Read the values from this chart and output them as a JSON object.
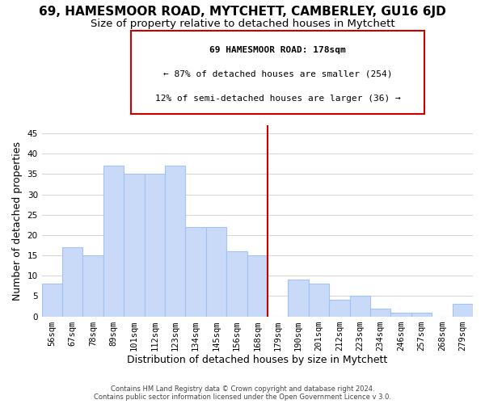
{
  "title1": "69, HAMESMOOR ROAD, MYTCHETT, CAMBERLEY, GU16 6JD",
  "title2": "Size of property relative to detached houses in Mytchett",
  "xlabel": "Distribution of detached houses by size in Mytchett",
  "ylabel": "Number of detached properties",
  "footer1": "Contains HM Land Registry data © Crown copyright and database right 2024.",
  "footer2": "Contains public sector information licensed under the Open Government Licence v 3.0.",
  "annotation_line1": "69 HAMESMOOR ROAD: 178sqm",
  "annotation_line2": "← 87% of detached houses are smaller (254)",
  "annotation_line3": "12% of semi-detached houses are larger (36) →",
  "bar_labels": [
    "56sqm",
    "67sqm",
    "78sqm",
    "89sqm",
    "101sqm",
    "112sqm",
    "123sqm",
    "134sqm",
    "145sqm",
    "156sqm",
    "168sqm",
    "179sqm",
    "190sqm",
    "201sqm",
    "212sqm",
    "223sqm",
    "234sqm",
    "246sqm",
    "257sqm",
    "268sqm",
    "279sqm"
  ],
  "bar_values": [
    8,
    17,
    15,
    37,
    35,
    35,
    37,
    22,
    22,
    16,
    15,
    0,
    9,
    8,
    4,
    5,
    2,
    1,
    1,
    0,
    3
  ],
  "bar_color": "#c9daf8",
  "bar_edge_color": "#a4c2f4",
  "grid_color": "#cccccc",
  "vline_color": "#cc0000",
  "annotation_box_edge_color": "#cc0000",
  "ylim": [
    0,
    47
  ],
  "yticks": [
    0,
    5,
    10,
    15,
    20,
    25,
    30,
    35,
    40,
    45
  ],
  "bg_color": "#ffffff",
  "title1_fontsize": 11,
  "title2_fontsize": 9.5,
  "tick_fontsize": 7.5,
  "xlabel_fontsize": 9,
  "ylabel_fontsize": 9,
  "footer_fontsize": 6,
  "annot_fontsize": 8
}
